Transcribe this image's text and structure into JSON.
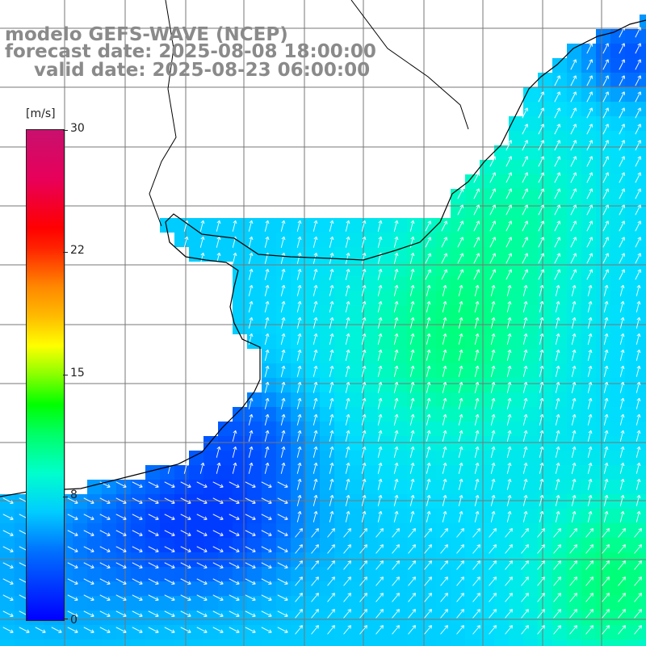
{
  "title": {
    "line1": "modelo GEFS-WAVE (NCEP)",
    "line2": "forecast date: 2025-08-08 18:00:00",
    "line3": "valid date: 2025-08-23 06:00:00"
  },
  "colorbar": {
    "unit": "[m/s]",
    "min": 0,
    "max": 30,
    "ticks": [
      "30",
      "22",
      "15",
      "8",
      "0"
    ]
  },
  "colors": {
    "title_text": "#8a8a8a",
    "grid": "#777777",
    "coast": "#000000",
    "arrow": "#ffffff"
  },
  "legend_semantics": "wind speed shading with wind direction arrows"
}
